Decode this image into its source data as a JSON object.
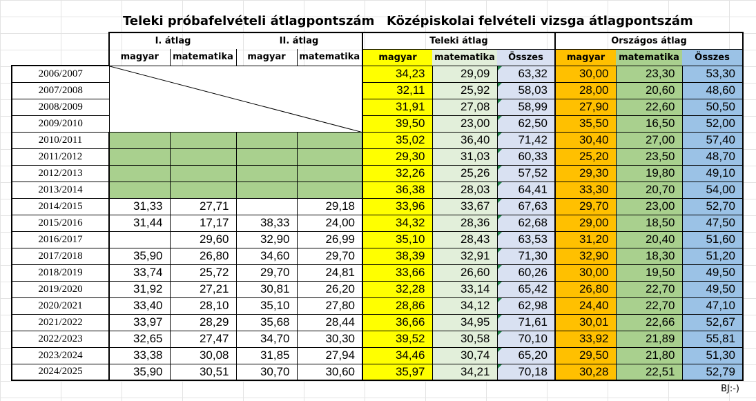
{
  "titles": {
    "proba": "Teleki próbafelvételi átlagpontszám",
    "kozep": "Középiskolai felvételi vizsga átlagpontszám"
  },
  "groups": {
    "avg1": "I. átlag",
    "avg2": "II. átlag",
    "teleki": "Teleki átlag",
    "orszagos": "Országos átlag"
  },
  "subheaders": {
    "p1": "magyar",
    "p2": "matematika",
    "p3": "magyar",
    "p4": "matematika",
    "t1": "magyar",
    "t2": "matematika",
    "t3": "Összes",
    "o1": "magyar",
    "o2": "matematika",
    "o3": "Összes"
  },
  "rows": [
    {
      "year": "2006/2007",
      "p": null,
      "t": [
        "34,23",
        "29,09",
        "63,32"
      ],
      "o": [
        "30,00",
        "23,30",
        "53,30"
      ]
    },
    {
      "year": "2007/2008",
      "p": null,
      "t": [
        "32,11",
        "25,92",
        "58,03"
      ],
      "o": [
        "28,00",
        "20,60",
        "48,60"
      ]
    },
    {
      "year": "2008/2009",
      "p": null,
      "t": [
        "31,91",
        "27,08",
        "58,99"
      ],
      "o": [
        "27,90",
        "22,60",
        "50,50"
      ]
    },
    {
      "year": "2009/2010",
      "p": null,
      "t": [
        "39,50",
        "23,00",
        "62,50"
      ],
      "o": [
        "35,50",
        "16,50",
        "52,00"
      ]
    },
    {
      "year": "2010/2011",
      "p": "green",
      "t": [
        "35,02",
        "36,40",
        "71,42"
      ],
      "o": [
        "30,40",
        "27,00",
        "57,40"
      ]
    },
    {
      "year": "2011/2012",
      "p": "green",
      "t": [
        "29,30",
        "31,03",
        "60,33"
      ],
      "o": [
        "25,20",
        "23,50",
        "48,70"
      ]
    },
    {
      "year": "2012/2013",
      "p": "green",
      "t": [
        "32,26",
        "25,26",
        "57,52"
      ],
      "o": [
        "29,30",
        "19,80",
        "49,10"
      ]
    },
    {
      "year": "2013/2014",
      "p": "green",
      "t": [
        "36,38",
        "28,03",
        "64,41"
      ],
      "o": [
        "33,30",
        "20,70",
        "54,00"
      ]
    },
    {
      "year": "2014/2015",
      "p": [
        "31,33",
        "27,71",
        "",
        "29,18"
      ],
      "t": [
        "33,96",
        "33,67",
        "67,63"
      ],
      "o": [
        "29,70",
        "23,00",
        "52,70"
      ]
    },
    {
      "year": "2015/2016",
      "p": [
        "31,44",
        "17,17",
        "38,33",
        "24,00"
      ],
      "t": [
        "34,32",
        "28,36",
        "62,68"
      ],
      "o": [
        "29,00",
        "18,50",
        "47,50"
      ]
    },
    {
      "year": "2016/2017",
      "p": [
        "",
        "29,60",
        "32,90",
        "26,99"
      ],
      "t": [
        "35,10",
        "28,43",
        "63,53"
      ],
      "o": [
        "31,20",
        "20,40",
        "51,60"
      ]
    },
    {
      "year": "2017/2018",
      "p": [
        "35,90",
        "26,80",
        "34,60",
        "29,70"
      ],
      "t": [
        "38,39",
        "32,91",
        "71,30"
      ],
      "o": [
        "32,90",
        "18,30",
        "51,20"
      ]
    },
    {
      "year": "2018/2019",
      "p": [
        "33,74",
        "25,72",
        "29,70",
        "24,81"
      ],
      "t": [
        "33,66",
        "26,60",
        "60,26"
      ],
      "o": [
        "30,00",
        "19,50",
        "49,50"
      ]
    },
    {
      "year": "2019/2020",
      "p": [
        "31,92",
        "27,21",
        "30,81",
        "26,20"
      ],
      "t": [
        "32,28",
        "33,14",
        "65,42"
      ],
      "o": [
        "26,80",
        "22,70",
        "49,50"
      ]
    },
    {
      "year": "2020/2021",
      "p": [
        "33,40",
        "28,10",
        "35,10",
        "27,80"
      ],
      "t": [
        "28,86",
        "34,12",
        "62,98"
      ],
      "o": [
        "24,40",
        "22,70",
        "47,10"
      ]
    },
    {
      "year": "2021/2022",
      "p": [
        "33,97",
        "28,29",
        "35,68",
        "28,44"
      ],
      "t": [
        "36,66",
        "34,95",
        "71,61"
      ],
      "o": [
        "30,01",
        "22,66",
        "52,67"
      ]
    },
    {
      "year": "2022/2023",
      "p": [
        "32,65",
        "27,47",
        "34,70",
        "30,30"
      ],
      "t": [
        "39,52",
        "30,58",
        "70,10"
      ],
      "o": [
        "33,92",
        "21,89",
        "55,81"
      ]
    },
    {
      "year": "2023/2024",
      "p": [
        "33,38",
        "30,08",
        "31,85",
        "27,94"
      ],
      "t": [
        "34,46",
        "30,74",
        "65,20"
      ],
      "o": [
        "29,50",
        "21,80",
        "51,30"
      ]
    },
    {
      "year": "2024/2025",
      "p": [
        "35,90",
        "30,51",
        "30,70",
        "30,60"
      ],
      "t": [
        "35,97",
        "34,21",
        "70,18"
      ],
      "o": [
        "30,28",
        "22,51",
        "52,79"
      ]
    }
  ],
  "footer": "BJ:-)",
  "colors": {
    "teleki_magyar": "#ffff00",
    "teleki_matek": "#e2efda",
    "teleki_osszes": "#d9e1f2",
    "orszagos_magyar": "#ffc000",
    "orszagos_matek": "#a9d08e",
    "orszagos_osszes": "#9bc2e6",
    "proba_missing": "#a9d08e"
  }
}
